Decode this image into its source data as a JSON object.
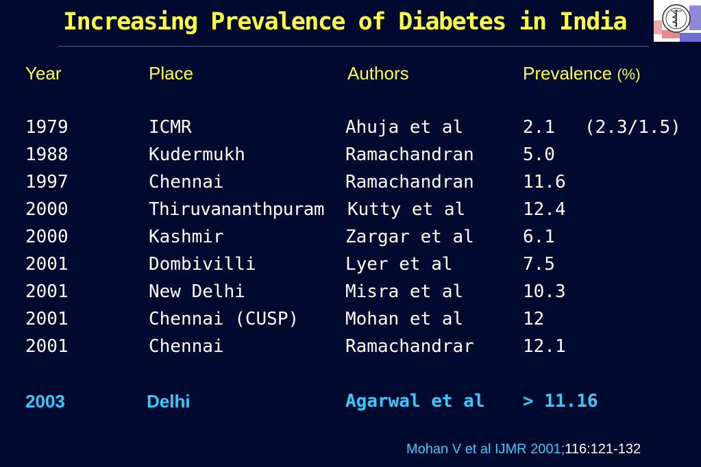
{
  "slide": {
    "title": "Increasing Prevalence of Diabetes in India",
    "colors": {
      "background": "#000a2e",
      "title": "#ffff33",
      "text": "#ffffff",
      "highlight": "#33ccff",
      "rule": "#cc3333"
    }
  },
  "table": {
    "headers": {
      "year": "Year",
      "place": "Place",
      "authors": "Authors",
      "prevalence": "Prevalence",
      "prevalence_unit": "(%)"
    },
    "rows": [
      {
        "year": "1979",
        "place": "ICMR",
        "authors": "Ahuja et al",
        "prevalence": "2.1",
        "note": "(2.3/1.5)"
      },
      {
        "year": "1988",
        "place": "Kudermukh",
        "authors": "Ramachandran",
        "prevalence": "5.0",
        "note": ""
      },
      {
        "year": "1997",
        "place": "Chennai",
        "authors": "Ramachandran",
        "prevalence": "11.6",
        "note": ""
      },
      {
        "year": "2000",
        "place": "Thiruvananthpuram",
        "authors": "Kutty et al",
        "prevalence": "12.4",
        "note": ""
      },
      {
        "year": "2000",
        "place": "Kashmir",
        "authors": "Zargar et al",
        "prevalence": "6.1",
        "note": ""
      },
      {
        "year": "2001",
        "place": "Dombivilli",
        "authors": "Lyer et al",
        "prevalence": "7.5",
        "note": ""
      },
      {
        "year": "2001",
        "place": "New Delhi",
        "authors": "Misra et al",
        "prevalence": "10.3",
        "note": ""
      },
      {
        "year": "2001",
        "place": "Chennai (CUSP)",
        "authors": "Mohan et al",
        "prevalence": "12",
        "note": ""
      },
      {
        "year": "2001",
        "place": "Chennai",
        "authors": "Ramachandrar",
        "prevalence": "12.1",
        "note": ""
      }
    ],
    "highlight_row": {
      "year": "2003",
      "place": "Delhi",
      "authors": "Agarwal et al",
      "prevalence": "> 11.16"
    }
  },
  "citation": {
    "main": "Mohan V et al IJMR 2001;",
    "volume": "116:121-132"
  },
  "logo": {
    "icon": "medical-emblem-icon"
  }
}
